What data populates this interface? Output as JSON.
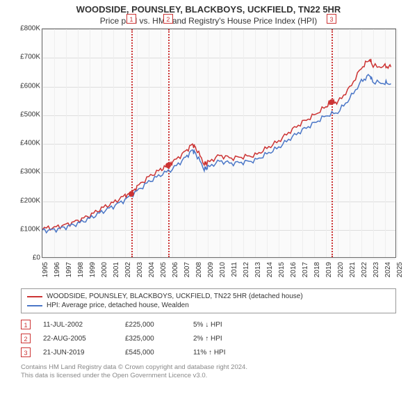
{
  "title": "WOODSIDE, POUNSLEY, BLACKBOYS, UCKFIELD, TN22 5HR",
  "subtitle": "Price paid vs. HM Land Registry's House Price Index (HPI)",
  "chart": {
    "type": "line",
    "background_color": "#fafafa",
    "grid_color": "#dddddd",
    "axis_color": "#666666",
    "xlim": [
      1995,
      2025
    ],
    "ylim": [
      0,
      800000
    ],
    "ytick_step": 100000,
    "yticklabels": [
      "£0",
      "£100K",
      "£200K",
      "£300K",
      "£400K",
      "£500K",
      "£600K",
      "£700K",
      "£800K"
    ],
    "xticks": [
      1995,
      1996,
      1997,
      1998,
      1999,
      2000,
      2001,
      2002,
      2003,
      2004,
      2005,
      2006,
      2007,
      2008,
      2009,
      2010,
      2011,
      2012,
      2013,
      2014,
      2015,
      2016,
      2017,
      2018,
      2019,
      2020,
      2021,
      2022,
      2023,
      2024,
      2025
    ],
    "series": [
      {
        "name": "property",
        "label": "WOODSIDE, POUNSLEY, BLACKBOYS, UCKFIELD, TN22 5HR (detached house)",
        "color": "#cc3333",
        "line_width": 1.5,
        "data": [
          [
            1995,
            105000
          ],
          [
            1996,
            108000
          ],
          [
            1997,
            118000
          ],
          [
            1998,
            132000
          ],
          [
            1999,
            150000
          ],
          [
            2000,
            175000
          ],
          [
            2001,
            195000
          ],
          [
            2002,
            220000
          ],
          [
            2002.5,
            225000
          ],
          [
            2003,
            250000
          ],
          [
            2004,
            285000
          ],
          [
            2005,
            310000
          ],
          [
            2005.64,
            325000
          ],
          [
            2006,
            335000
          ],
          [
            2007,
            370000
          ],
          [
            2007.7,
            398000
          ],
          [
            2008,
            385000
          ],
          [
            2008.7,
            330000
          ],
          [
            2009,
            335000
          ],
          [
            2010,
            360000
          ],
          [
            2011,
            350000
          ],
          [
            2012,
            355000
          ],
          [
            2013,
            360000
          ],
          [
            2014,
            385000
          ],
          [
            2015,
            410000
          ],
          [
            2016,
            445000
          ],
          [
            2017,
            475000
          ],
          [
            2018,
            500000
          ],
          [
            2019,
            530000
          ],
          [
            2019.47,
            545000
          ],
          [
            2020,
            545000
          ],
          [
            2021,
            595000
          ],
          [
            2022,
            665000
          ],
          [
            2022.7,
            695000
          ],
          [
            2023,
            670000
          ],
          [
            2024,
            670000
          ],
          [
            2024.5,
            668000
          ]
        ]
      },
      {
        "name": "hpi",
        "label": "HPI: Average price, detached house, Wealden",
        "color": "#4a76c7",
        "line_width": 1.5,
        "data": [
          [
            1995,
            98000
          ],
          [
            1996,
            100000
          ],
          [
            1997,
            110000
          ],
          [
            1998,
            122000
          ],
          [
            1999,
            140000
          ],
          [
            2000,
            162000
          ],
          [
            2001,
            182000
          ],
          [
            2002,
            205000
          ],
          [
            2003,
            235000
          ],
          [
            2004,
            268000
          ],
          [
            2005,
            292000
          ],
          [
            2006,
            312000
          ],
          [
            2007,
            348000
          ],
          [
            2007.7,
            378000
          ],
          [
            2008,
            365000
          ],
          [
            2008.7,
            312000
          ],
          [
            2009,
            318000
          ],
          [
            2010,
            340000
          ],
          [
            2011,
            332000
          ],
          [
            2012,
            336000
          ],
          [
            2013,
            342000
          ],
          [
            2014,
            365000
          ],
          [
            2015,
            388000
          ],
          [
            2016,
            420000
          ],
          [
            2017,
            448000
          ],
          [
            2018,
            472000
          ],
          [
            2019,
            498000
          ],
          [
            2020,
            510000
          ],
          [
            2021,
            558000
          ],
          [
            2022,
            618000
          ],
          [
            2022.7,
            640000
          ],
          [
            2023,
            615000
          ],
          [
            2024,
            612000
          ],
          [
            2024.5,
            610000
          ]
        ]
      }
    ],
    "markers": [
      {
        "id": "1",
        "x": 2002.53,
        "y": 225000
      },
      {
        "id": "2",
        "x": 2005.64,
        "y": 325000
      },
      {
        "id": "3",
        "x": 2019.47,
        "y": 545000
      }
    ]
  },
  "legend": {
    "items": [
      {
        "color": "#cc3333",
        "label": "WOODSIDE, POUNSLEY, BLACKBOYS, UCKFIELD, TN22 5HR (detached house)"
      },
      {
        "color": "#4a76c7",
        "label": "HPI: Average price, detached house, Wealden"
      }
    ]
  },
  "events": [
    {
      "id": "1",
      "date": "11-JUL-2002",
      "price": "£225,000",
      "hpi_delta": "5% ↓ HPI"
    },
    {
      "id": "2",
      "date": "22-AUG-2005",
      "price": "£325,000",
      "hpi_delta": "2% ↑ HPI"
    },
    {
      "id": "3",
      "date": "21-JUN-2019",
      "price": "£545,000",
      "hpi_delta": "11% ↑ HPI"
    }
  ],
  "attribution": {
    "line1": "Contains HM Land Registry data © Crown copyright and database right 2024.",
    "line2": "This data is licensed under the Open Government Licence v3.0."
  }
}
